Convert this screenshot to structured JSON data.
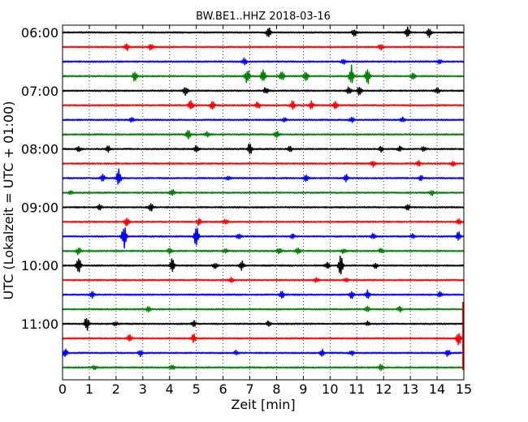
{
  "chart_data": {
    "type": "line",
    "title": "BW.BE1..HHZ 2018-03-16",
    "xlabel": "Zeit  [min]",
    "ylabel": "UTC (Lokalzeit = UTC + 01:00)",
    "xlim": [
      0,
      15
    ],
    "x_ticks": [
      "0",
      "1",
      "2",
      "3",
      "4",
      "5",
      "6",
      "7",
      "8",
      "9",
      "10",
      "11",
      "12",
      "13",
      "14",
      "15"
    ],
    "y_ticks": [
      "06:00",
      "07:00",
      "08:00",
      "09:00",
      "10:00",
      "11:00"
    ],
    "grid": "vertical dotted",
    "traces_per_hour": 4,
    "trace_minutes": 15,
    "colors": [
      "#000000",
      "#ff0000",
      "#0000ff",
      "#008000"
    ],
    "series": [
      {
        "start": "06:00",
        "events": [
          [
            7.7,
            6
          ],
          [
            10.9,
            5
          ],
          [
            12.9,
            6
          ],
          [
            13.7,
            7
          ]
        ]
      },
      {
        "start": "06:15",
        "events": [
          [
            2.4,
            4
          ],
          [
            3.3,
            4
          ],
          [
            11.9,
            4
          ]
        ]
      },
      {
        "start": "06:30",
        "events": [
          [
            6.8,
            4
          ],
          [
            10.5,
            3
          ],
          [
            14.1,
            3
          ]
        ]
      },
      {
        "start": "06:45",
        "events": [
          [
            2.7,
            6
          ],
          [
            6.9,
            10
          ],
          [
            7.5,
            8
          ],
          [
            8.2,
            6
          ],
          [
            9.1,
            5
          ],
          [
            10.8,
            13
          ],
          [
            11.4,
            10
          ],
          [
            13.1,
            4
          ]
        ]
      },
      {
        "start": "07:00",
        "events": [
          [
            4.6,
            5
          ],
          [
            7.6,
            4
          ],
          [
            10.7,
            5
          ],
          [
            11.1,
            5
          ],
          [
            14.0,
            4
          ]
        ]
      },
      {
        "start": "07:15",
        "events": [
          [
            4.8,
            8
          ],
          [
            5.6,
            5
          ],
          [
            7.3,
            4
          ],
          [
            8.6,
            5
          ],
          [
            9.3,
            5
          ],
          [
            10.2,
            4
          ]
        ]
      },
      {
        "start": "07:30",
        "events": [
          [
            2.6,
            3
          ],
          [
            8.3,
            3
          ],
          [
            10.8,
            3
          ],
          [
            12.7,
            3
          ]
        ]
      },
      {
        "start": "07:45",
        "events": [
          [
            4.7,
            6
          ],
          [
            5.4,
            3
          ],
          [
            8.0,
            4
          ]
        ]
      },
      {
        "start": "08:00",
        "events": [
          [
            0.6,
            3
          ],
          [
            1.7,
            4
          ],
          [
            5.0,
            4
          ],
          [
            7.0,
            7
          ],
          [
            8.5,
            4
          ],
          [
            11.9,
            3
          ],
          [
            12.6,
            3
          ],
          [
            13.5,
            3
          ]
        ]
      },
      {
        "start": "08:15",
        "events": [
          [
            11.6,
            4
          ],
          [
            13.3,
            3
          ],
          [
            14.6,
            3
          ]
        ]
      },
      {
        "start": "08:30",
        "events": [
          [
            1.5,
            4
          ],
          [
            2.1,
            11
          ],
          [
            6.2,
            3
          ],
          [
            9.1,
            4
          ],
          [
            10.6,
            4
          ],
          [
            13.4,
            3
          ]
        ]
      },
      {
        "start": "08:45",
        "events": [
          [
            0.3,
            3
          ],
          [
            4.1,
            4
          ],
          [
            13.8,
            3
          ]
        ]
      },
      {
        "start": "09:00",
        "events": [
          [
            1.4,
            3
          ],
          [
            3.3,
            5
          ],
          [
            12.9,
            3
          ]
        ]
      },
      {
        "start": "09:15",
        "events": [
          [
            2.4,
            6
          ],
          [
            5.1,
            4
          ],
          [
            6.1,
            3
          ],
          [
            14.8,
            4
          ]
        ]
      },
      {
        "start": "09:30",
        "events": [
          [
            2.3,
            14
          ],
          [
            5.0,
            12
          ],
          [
            6.6,
            4
          ],
          [
            8.6,
            3
          ],
          [
            11.6,
            3
          ],
          [
            13.1,
            3
          ],
          [
            14.8,
            5
          ]
        ]
      },
      {
        "start": "09:45",
        "events": [
          [
            0.6,
            5
          ],
          [
            4.0,
            3
          ],
          [
            6.1,
            3
          ],
          [
            8.1,
            4
          ],
          [
            8.8,
            5
          ],
          [
            10.5,
            3
          ],
          [
            11.9,
            3
          ]
        ]
      },
      {
        "start": "10:00",
        "events": [
          [
            0.6,
            12
          ],
          [
            4.1,
            8
          ],
          [
            5.7,
            4
          ],
          [
            6.7,
            5
          ],
          [
            9.9,
            5
          ],
          [
            10.4,
            14
          ],
          [
            11.7,
            3
          ]
        ]
      },
      {
        "start": "10:15",
        "events": [
          [
            6.3,
            3
          ],
          [
            9.5,
            3
          ],
          [
            10.6,
            3
          ]
        ]
      },
      {
        "start": "10:30",
        "events": [
          [
            1.1,
            4
          ],
          [
            8.2,
            4
          ],
          [
            10.8,
            5
          ],
          [
            11.4,
            5
          ],
          [
            14.1,
            3
          ]
        ]
      },
      {
        "start": "10:45",
        "events": [
          [
            3.2,
            3
          ],
          [
            11.4,
            3
          ],
          [
            12.6,
            3
          ]
        ]
      },
      {
        "start": "11:00",
        "events": [
          [
            0.9,
            9
          ],
          [
            2.0,
            3
          ],
          [
            4.9,
            4
          ],
          [
            7.7,
            3
          ],
          [
            11.4,
            3
          ]
        ]
      },
      {
        "start": "11:15",
        "events": [
          [
            2.5,
            4
          ],
          [
            4.9,
            5
          ],
          [
            14.8,
            10
          ]
        ]
      },
      {
        "start": "11:30",
        "events": [
          [
            0.1,
            5
          ],
          [
            2.9,
            4
          ],
          [
            6.5,
            3
          ],
          [
            9.7,
            4
          ],
          [
            10.8,
            3
          ],
          [
            14.4,
            4
          ]
        ]
      },
      {
        "start": "11:45",
        "events": [
          [
            1.2,
            3
          ],
          [
            4.1,
            3
          ],
          [
            11.9,
            5
          ]
        ]
      }
    ],
    "annotations": [
      {
        "type": "vertical-line",
        "at_x": 14.98,
        "from_trace": "11:15",
        "to_trace": "11:45",
        "color": "#ff0000"
      }
    ]
  }
}
